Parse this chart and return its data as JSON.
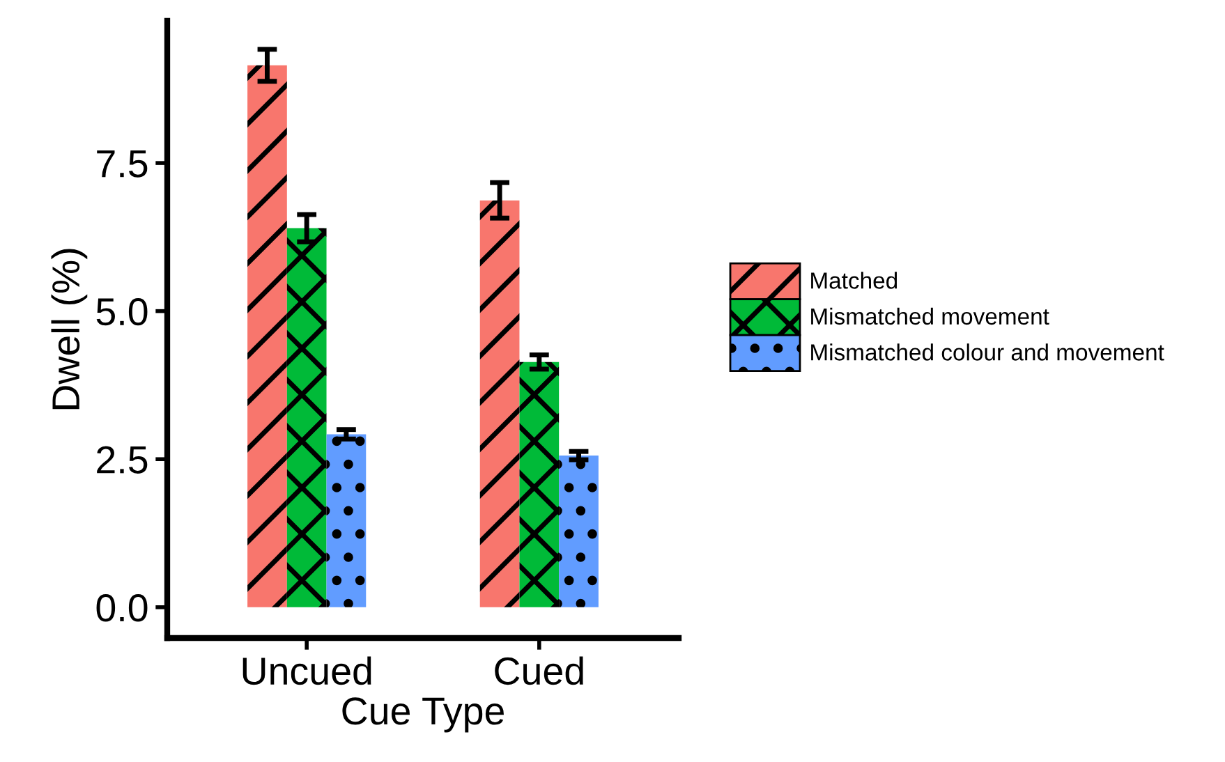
{
  "chart_data": {
    "type": "bar",
    "xlabel": "Cue Type",
    "ylabel": "Dwell (%)",
    "categories": [
      "Uncued",
      "Cued"
    ],
    "series": [
      {
        "name": "Matched",
        "color": "#f8766d",
        "values": [
          9.15,
          6.87
        ],
        "errors": [
          0.27,
          0.3
        ]
      },
      {
        "name": "Mismatched movement",
        "color": "#00ba38",
        "values": [
          6.4,
          4.14
        ],
        "errors": [
          0.23,
          0.12
        ]
      },
      {
        "name": "Mismatched colour and movement",
        "color": "#619cff",
        "values": [
          2.92,
          2.56
        ],
        "errors": [
          0.08,
          0.07
        ]
      }
    ],
    "ylim": [
      -0.52,
      9.9
    ],
    "yticks": [
      {
        "value": 0,
        "label": "0.0"
      },
      {
        "value": 2.5,
        "label": "2.5"
      },
      {
        "value": 5,
        "label": "5.0"
      },
      {
        "value": 7.5,
        "label": "7.5"
      }
    ],
    "grid": false,
    "legend": "right"
  }
}
